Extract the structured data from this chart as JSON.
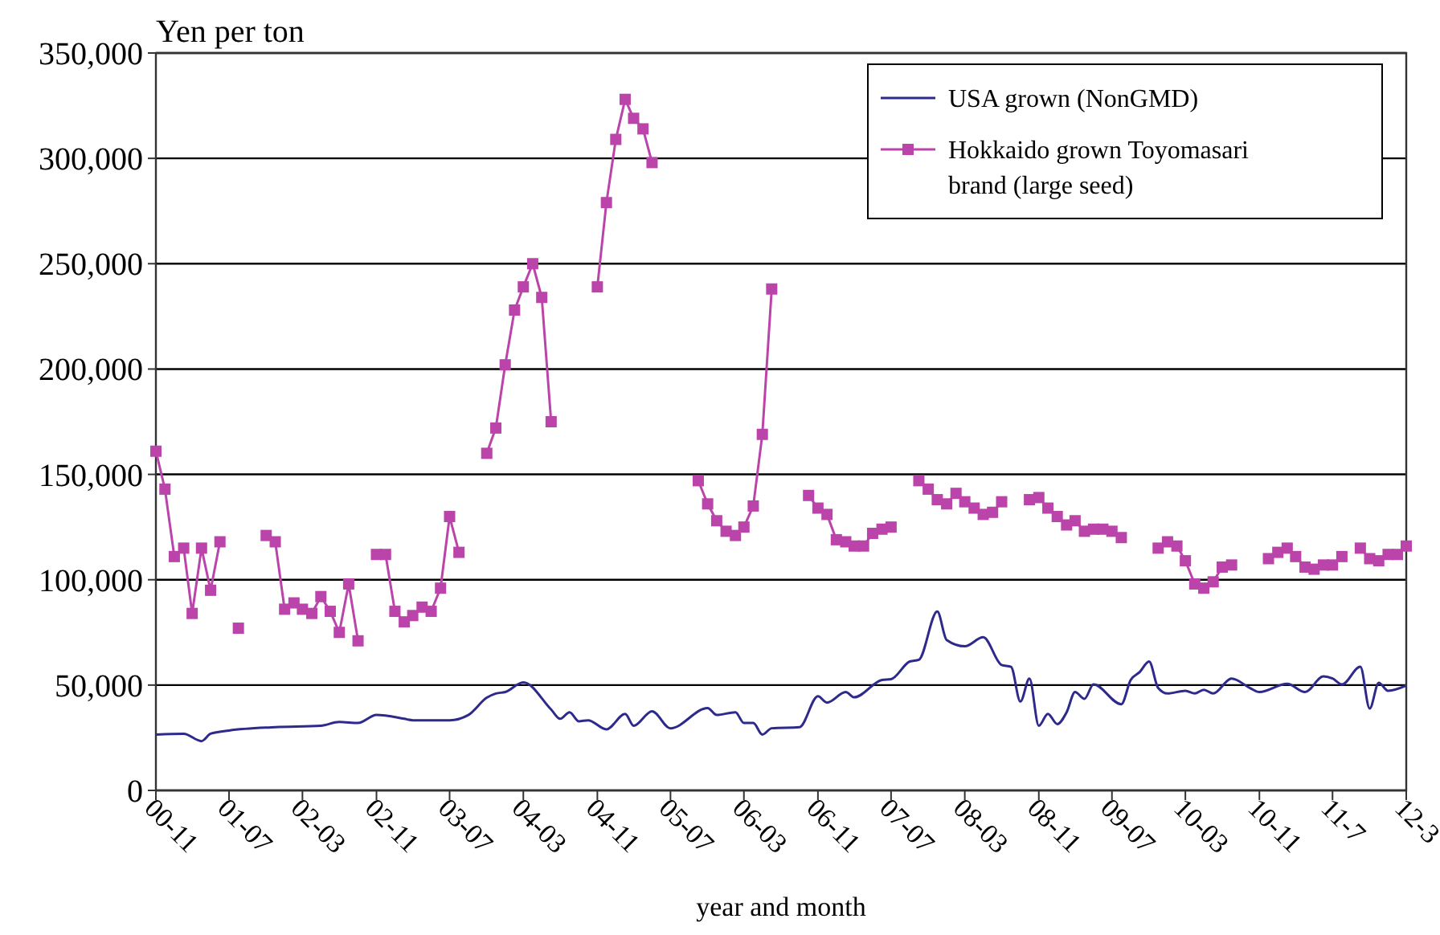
{
  "chart_data": {
    "type": "line",
    "ylabel": "Yen per ton",
    "xlabel": "year and month",
    "xlim": [
      "2000-11",
      "2012-03"
    ],
    "xticks": [
      {
        "value": "2000-11",
        "label": "00-11"
      },
      {
        "value": "2001-07",
        "label": "01-07"
      },
      {
        "value": "2002-03",
        "label": "02-03"
      },
      {
        "value": "2002-11",
        "label": "02-11"
      },
      {
        "value": "2003-07",
        "label": "03-07"
      },
      {
        "value": "2004-03",
        "label": "04-03"
      },
      {
        "value": "2004-11",
        "label": "04-11"
      },
      {
        "value": "2005-07",
        "label": "05-07"
      },
      {
        "value": "2006-03",
        "label": "06-03"
      },
      {
        "value": "2006-11",
        "label": "06-11"
      },
      {
        "value": "2007-07",
        "label": "07-07"
      },
      {
        "value": "2008-03",
        "label": "08-03"
      },
      {
        "value": "2008-11",
        "label": "08-11"
      },
      {
        "value": "2009-07",
        "label": "09-07"
      },
      {
        "value": "2010-03",
        "label": "10-03"
      },
      {
        "value": "2010-11",
        "label": "10-11"
      },
      {
        "value": "2011-07",
        "label": "11-7"
      },
      {
        "value": "2012-03",
        "label": "12-3"
      }
    ],
    "ylim": [
      0,
      350000
    ],
    "yticks": [
      {
        "value": 0,
        "label": "0"
      },
      {
        "value": 50000,
        "label": "50,000"
      },
      {
        "value": 100000,
        "label": "100,000"
      },
      {
        "value": 150000,
        "label": "150,000"
      },
      {
        "value": 200000,
        "label": "200,000"
      },
      {
        "value": 250000,
        "label": "250,000"
      },
      {
        "value": 300000,
        "label": "300,000"
      },
      {
        "value": 350000,
        "label": "350,000"
      }
    ],
    "grid": "y",
    "legend": "top right",
    "series": [
      {
        "name": "USA grown (NonGMD)",
        "color": "#2e2a8c",
        "marker": "none",
        "x": [
          "2000-11",
          "2001-02",
          "2001-04",
          "2001-05",
          "2001-07",
          "2001-12",
          "2002-05",
          "2002-07",
          "2002-09",
          "2002-11",
          "2003-02",
          "2003-03",
          "2003-07",
          "2003-09",
          "2003-11",
          "2003-12",
          "2004-01",
          "2004-03",
          "2004-06",
          "2004-07",
          "2004-08",
          "2004-09",
          "2004-10",
          "2004-12",
          "2005-02",
          "2005-03",
          "2005-05",
          "2005-07",
          "2005-11",
          "2005-12",
          "2006-02",
          "2006-03",
          "2006-04",
          "2006-05",
          "2006-06",
          "2006-09",
          "2006-11",
          "2006-12",
          "2007-02",
          "2007-03",
          "2007-06",
          "2007-07",
          "2007-09",
          "2007-10",
          "2007-12",
          "2008-01",
          "2008-03",
          "2008-05",
          "2008-07",
          "2008-08",
          "2008-09",
          "2008-10",
          "2008-11",
          "2008-12",
          "2009-01",
          "2009-02",
          "2009-03",
          "2009-04",
          "2009-05",
          "2009-08",
          "2009-09",
          "2009-10",
          "2009-11",
          "2009-12",
          "2010-01",
          "2010-03",
          "2010-04",
          "2010-05",
          "2010-06",
          "2010-08",
          "2010-10",
          "2010-11",
          "2011-02",
          "2011-04",
          "2011-06",
          "2011-07",
          "2011-08",
          "2011-10",
          "2011-11",
          "2011-12",
          "2012-01",
          "2012-03"
        ],
        "values": [
          26500,
          26900,
          23400,
          26900,
          28400,
          30000,
          30700,
          32500,
          32000,
          35800,
          34000,
          33300,
          33300,
          35800,
          44000,
          46000,
          46700,
          51300,
          38400,
          34000,
          37100,
          32800,
          33300,
          29000,
          36300,
          30700,
          37600,
          29500,
          39100,
          35800,
          37100,
          32000,
          32000,
          26500,
          29500,
          30000,
          44700,
          41700,
          46700,
          44200,
          52400,
          52800,
          61200,
          62000,
          84900,
          71400,
          68400,
          72700,
          59500,
          58700,
          42200,
          53100,
          30700,
          36300,
          31500,
          37100,
          46700,
          43500,
          50300,
          40900,
          52400,
          56200,
          61200,
          48600,
          46000,
          47300,
          46000,
          47800,
          46000,
          53100,
          48600,
          46700,
          50600,
          46700,
          54100,
          53100,
          50300,
          58700,
          38900,
          51100,
          47300,
          49800
        ]
      },
      {
        "name": "Hokkaido grown Toyomasari brand (large seed)",
        "color": "#bb44aa",
        "marker": "square",
        "x": [
          "2000-11",
          "2000-12",
          "2001-01",
          "2001-02",
          "2001-03",
          "2001-04",
          "2001-05",
          "2001-06",
          "2001-07",
          "2001-08",
          "2001-09",
          "2001-11",
          "2001-12",
          "2002-01",
          "2002-02",
          "2002-03",
          "2002-04",
          "2002-05",
          "2002-06",
          "2002-07",
          "2002-08",
          "2002-09",
          "2002-10",
          "2002-11",
          "2002-12",
          "2003-01",
          "2003-02",
          "2003-03",
          "2003-04",
          "2003-05",
          "2003-06",
          "2003-07",
          "2003-08",
          "2003-09",
          "2003-11",
          "2003-12",
          "2004-01",
          "2004-02",
          "2004-03",
          "2004-04",
          "2004-05",
          "2004-06",
          "2004-10",
          "2004-11",
          "2004-12",
          "2005-01",
          "2005-02",
          "2005-03",
          "2005-04",
          "2005-05",
          "2005-06",
          "2005-10",
          "2005-11",
          "2005-12",
          "2006-01",
          "2006-02",
          "2006-03",
          "2006-04",
          "2006-05",
          "2006-06",
          "2006-07",
          "2006-10",
          "2006-11",
          "2006-12",
          "2007-01",
          "2007-02",
          "2007-03",
          "2007-04",
          "2007-05",
          "2007-06",
          "2007-07",
          "2007-08",
          "2007-10",
          "2007-11",
          "2007-12",
          "2008-01",
          "2008-02",
          "2008-03",
          "2008-04",
          "2008-05",
          "2008-06",
          "2008-07",
          "2008-08",
          "2008-10",
          "2008-11",
          "2008-12",
          "2009-01",
          "2009-02",
          "2009-03",
          "2009-04",
          "2009-05",
          "2009-06",
          "2009-07",
          "2009-08",
          "2009-09",
          "2009-12",
          "2010-01",
          "2010-02",
          "2010-03",
          "2010-04",
          "2010-05",
          "2010-06",
          "2010-07",
          "2010-08",
          "2010-09",
          "2010-12",
          "2011-01",
          "2011-02",
          "2011-03",
          "2011-04",
          "2011-05",
          "2011-06",
          "2011-07",
          "2011-08",
          "2011-09",
          "2011-10",
          "2011-11",
          "2011-12",
          "2012-01",
          "2012-02",
          "2012-03"
        ],
        "values": [
          161000,
          143000,
          111000,
          115000,
          84000,
          115000,
          95000,
          118000,
          null,
          77000,
          null,
          121000,
          118000,
          86000,
          89000,
          86000,
          84000,
          92000,
          85000,
          75000,
          98000,
          71000,
          null,
          112000,
          112000,
          85000,
          80000,
          83000,
          87000,
          85000,
          96000,
          130000,
          113000,
          null,
          160000,
          172000,
          202000,
          228000,
          239000,
          250000,
          234000,
          175000,
          null,
          239000,
          279000,
          309000,
          328000,
          319000,
          314000,
          298000,
          null,
          147000,
          136000,
          128000,
          123000,
          121000,
          125000,
          135000,
          169000,
          238000,
          null,
          140000,
          134000,
          131000,
          119000,
          118000,
          116000,
          116000,
          122000,
          124000,
          125000,
          null,
          147000,
          143000,
          138000,
          136000,
          141000,
          137000,
          134000,
          131000,
          132000,
          137000,
          null,
          138000,
          139000,
          134000,
          130000,
          126000,
          128000,
          123000,
          124000,
          124000,
          123000,
          120000,
          null,
          115000,
          118000,
          116000,
          109000,
          98000,
          96000,
          99000,
          106000,
          107000,
          null,
          110000,
          113000,
          115000,
          111000,
          106000,
          105000,
          107000,
          107000,
          111000,
          null,
          115000,
          110000,
          109000,
          112000,
          112000,
          116000
        ]
      }
    ]
  }
}
